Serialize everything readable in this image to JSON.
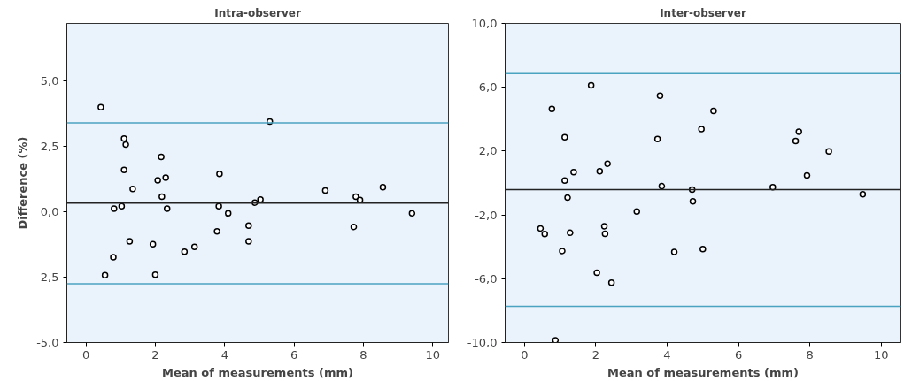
{
  "chart_data": [
    {
      "type": "scatter",
      "title": "Intra-observer",
      "xlabel": "Mean of measurements (mm)",
      "ylabel": "Difference (%)",
      "xlim": [
        -0.55,
        10.45
      ],
      "xticks": [
        0,
        2,
        4,
        6,
        8,
        10
      ],
      "ylim": [
        -5,
        7.2
      ],
      "yticks": [
        {
          "value": -5,
          "label": "-5,0"
        },
        {
          "value": -2.5,
          "label": "-2,5"
        },
        {
          "value": 0,
          "label": "0,0"
        },
        {
          "value": 2.5,
          "label": "2,5"
        },
        {
          "value": 5,
          "label": "5,0"
        }
      ],
      "grid": false,
      "marker": "circle",
      "ref_lines": [
        {
          "axis": "y",
          "value": 3.4,
          "color": "#4aa3c0"
        },
        {
          "axis": "y",
          "value": 0.33,
          "color": "#222222"
        },
        {
          "axis": "y",
          "value": -2.75,
          "color": "#4aa3c0"
        }
      ],
      "series": [
        {
          "color": "#000000",
          "x": [
            0.43,
            1.1,
            1.15,
            1.1,
            1.35,
            2.17,
            2.07,
            2.3,
            3.85,
            5.3,
            6.9,
            7.78,
            7.9,
            8.56,
            0.81,
            1.03,
            2.19,
            2.34,
            1.26,
            0.79,
            0.55,
            1.93,
            2.0,
            2.84,
            3.13,
            3.78,
            3.83,
            4.1,
            4.69,
            4.69,
            4.87,
            5.03,
            7.72,
            9.4
          ],
          "values": [
            4.0,
            2.8,
            2.57,
            1.6,
            0.87,
            2.1,
            1.2,
            1.3,
            1.45,
            3.45,
            0.81,
            0.58,
            0.45,
            0.94,
            0.12,
            0.21,
            0.58,
            0.12,
            -1.13,
            -1.74,
            -2.42,
            -1.24,
            -2.41,
            -1.53,
            -1.34,
            -0.75,
            0.21,
            -0.06,
            -0.53,
            -1.13,
            0.35,
            0.47,
            -0.58,
            -0.06
          ]
        }
      ]
    },
    {
      "type": "scatter",
      "title": "Inter-observer",
      "xlabel": "Mean of measurements (mm)",
      "xlim": [
        -0.54,
        10.55
      ],
      "xticks": [
        0,
        2,
        4,
        6,
        8,
        10
      ],
      "ylim": [
        -10,
        10
      ],
      "yticks": [
        {
          "value": -10,
          "label": "-10,0"
        },
        {
          "value": -6,
          "label": "-6,0"
        },
        {
          "value": -2,
          "label": "-2,0"
        },
        {
          "value": 2,
          "label": "2,0"
        },
        {
          "value": 6,
          "label": "6,0"
        },
        {
          "value": 10,
          "label": "10,0"
        }
      ],
      "grid": false,
      "marker": "circle",
      "ref_lines": [
        {
          "axis": "y",
          "value": 6.85,
          "color": "#4aa3c0"
        },
        {
          "axis": "y",
          "value": -0.42,
          "color": "#222222"
        },
        {
          "axis": "y",
          "value": -7.73,
          "color": "#4aa3c0"
        }
      ],
      "series": [
        {
          "color": "#000000",
          "x": [
            0.77,
            1.87,
            3.8,
            1.13,
            3.73,
            4.96,
            5.3,
            7.6,
            7.69,
            8.53,
            7.92,
            1.13,
            1.38,
            2.11,
            2.33,
            3.85,
            4.7,
            6.96,
            9.48,
            1.21,
            4.72,
            3.15,
            0.45,
            0.57,
            1.28,
            2.24,
            2.26,
            1.06,
            4.2,
            5.0,
            2.03,
            2.44,
            0.87
          ],
          "values": [
            4.64,
            6.12,
            5.47,
            2.87,
            2.75,
            3.38,
            4.52,
            2.63,
            3.22,
            1.98,
            0.47,
            0.15,
            0.68,
            0.74,
            1.21,
            -0.2,
            -0.42,
            -0.27,
            -0.7,
            -0.92,
            -1.15,
            -1.78,
            -2.85,
            -3.2,
            -3.12,
            -2.71,
            -3.18,
            -4.26,
            -4.32,
            -4.14,
            -5.62,
            -6.24,
            -9.86
          ]
        }
      ]
    }
  ]
}
